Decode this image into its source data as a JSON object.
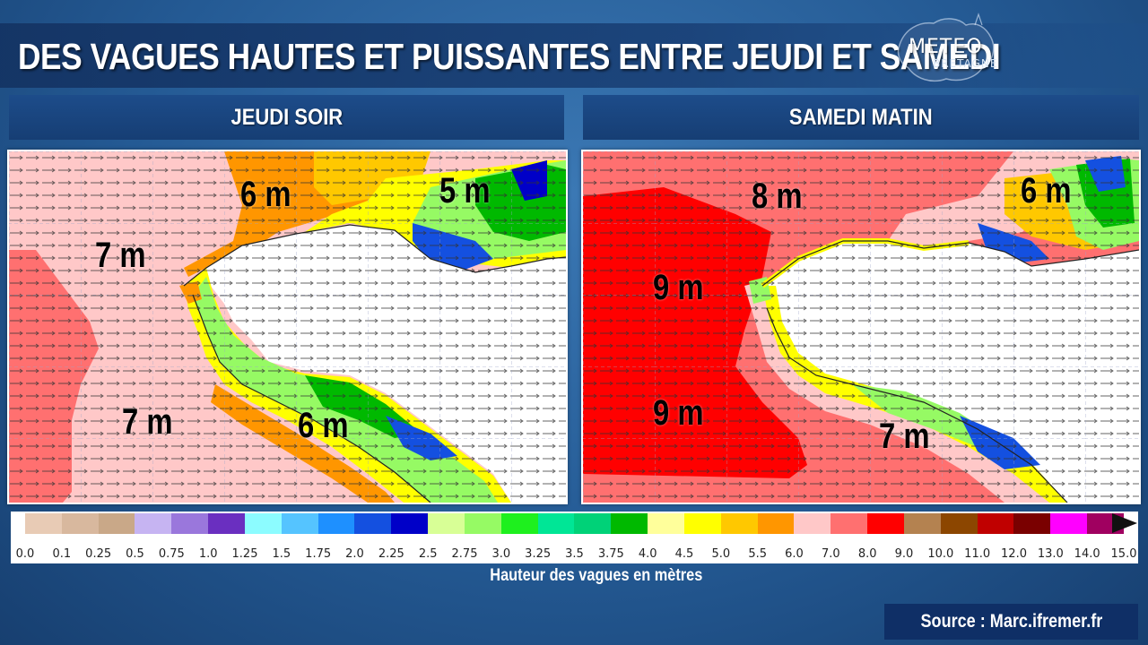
{
  "title": "DES VAGUES HAUTES ET PUISSANTES ENTRE JEUDI ET SAMEDI",
  "logo": {
    "line1": "METEO",
    "line2": "BRETAGNE"
  },
  "panels": [
    {
      "header": "JEUDI SOIR",
      "labels": [
        "6 m",
        "5 m",
        "7 m",
        "7 m",
        "6 m"
      ]
    },
    {
      "header": "SAMEDI MATIN",
      "labels": [
        "8 m",
        "6 m",
        "9 m",
        "9 m",
        "7 m"
      ]
    }
  ],
  "colorbar": {
    "colors": [
      "#e8cbb5",
      "#d8b89e",
      "#c9a888",
      "#c6b4f2",
      "#9a77dc",
      "#6a2fc0",
      "#8cfcff",
      "#55c4ff",
      "#1e90ff",
      "#1450e0",
      "#0000c8",
      "#d8ff96",
      "#96fa64",
      "#1ef01e",
      "#00e696",
      "#00d278",
      "#00b900",
      "#ffff9b",
      "#ffff00",
      "#ffc800",
      "#ff9600",
      "#ffc8c8",
      "#ff7070",
      "#ff0000",
      "#b48250",
      "#8c4600",
      "#c00000",
      "#7a0000",
      "#ff00ff",
      "#a00060"
    ],
    "ticks": [
      "0.0",
      "0.1",
      "0.25",
      "0.5",
      "0.75",
      "1.0",
      "1.25",
      "1.5",
      "1.75",
      "2.0",
      "2.25",
      "2.5",
      "2.75",
      "3.0",
      "3.25",
      "3.5",
      "3.75",
      "4.0",
      "4.5",
      "5.0",
      "5.5",
      "6.0",
      "7.0",
      "8.0",
      "9.0",
      "10.0",
      "11.0",
      "12.0",
      "13.0",
      "14.0",
      "15.0"
    ],
    "caption": "Hauteur des vagues en mètres"
  },
  "source": "Source : Marc.ifremer.fr"
}
